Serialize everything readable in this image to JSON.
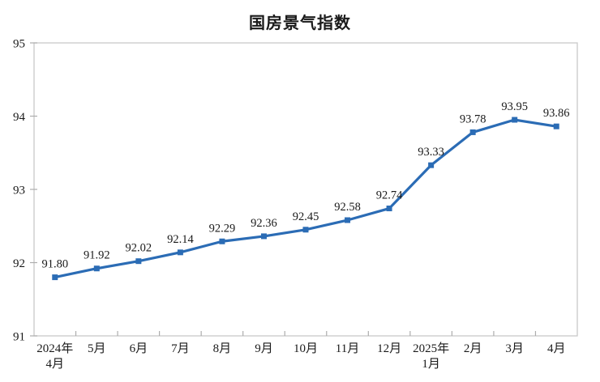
{
  "chart_data": {
    "type": "line",
    "title": "国房景气指数",
    "categories": [
      [
        "2024年",
        "4月"
      ],
      [
        "5月"
      ],
      [
        "6月"
      ],
      [
        "7月"
      ],
      [
        "8月"
      ],
      [
        "9月"
      ],
      [
        "10月"
      ],
      [
        "11月"
      ],
      [
        "12月"
      ],
      [
        "2025年",
        "1月"
      ],
      [
        "2月"
      ],
      [
        "3月"
      ],
      [
        "4月"
      ]
    ],
    "values": [
      91.8,
      91.92,
      92.02,
      92.14,
      92.29,
      92.36,
      92.45,
      92.58,
      92.74,
      93.33,
      93.78,
      93.95,
      93.86
    ],
    "data_labels": [
      "91.80",
      "91.92",
      "92.02",
      "92.14",
      "92.29",
      "92.36",
      "92.45",
      "92.58",
      "92.74",
      "93.33",
      "93.78",
      "93.95",
      "93.86"
    ],
    "xlabel": "",
    "ylabel": "",
    "y_ticks": [
      91,
      92,
      93,
      94,
      95
    ],
    "ylim": [
      91,
      95
    ],
    "grid": "off",
    "legend": "none",
    "line_color": "#2B6CB5",
    "marker": "square",
    "text_color": "#1a1a1a",
    "border_color": "#C9C9C9",
    "tick_color": "#ADADAD"
  }
}
